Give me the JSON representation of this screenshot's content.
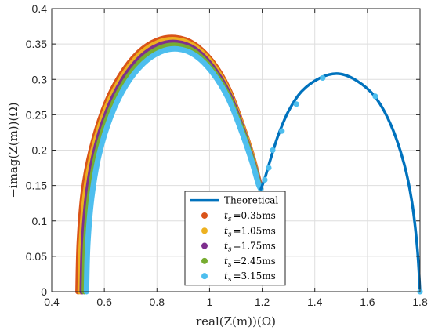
{
  "chart_data": {
    "type": "line",
    "title": "",
    "xlabel": "real(Z(m))(Ω)",
    "ylabel": "−imag(Z(m))(Ω)",
    "xlim": [
      0.4,
      1.8
    ],
    "ylim": [
      0,
      0.4
    ],
    "xticks": [
      "0.4",
      "0.6",
      "0.8",
      "1",
      "1.2",
      "1.4",
      "1.6",
      "1.8"
    ],
    "yticks": [
      "0",
      "0.05",
      "0.1",
      "0.15",
      "0.2",
      "0.25",
      "0.3",
      "0.35",
      "0.4"
    ],
    "grid": true,
    "legend_position": "bottom-center",
    "theoretical": {
      "name": "Theoretical",
      "color": "#0072BD",
      "points": [
        [
          1.195,
          0.145
        ],
        [
          1.21,
          0.16
        ],
        [
          1.23,
          0.185
        ],
        [
          1.26,
          0.22
        ],
        [
          1.3,
          0.255
        ],
        [
          1.35,
          0.283
        ],
        [
          1.42,
          0.302
        ],
        [
          1.49,
          0.308
        ],
        [
          1.56,
          0.298
        ],
        [
          1.63,
          0.275
        ],
        [
          1.69,
          0.235
        ],
        [
          1.74,
          0.18
        ],
        [
          1.77,
          0.125
        ],
        [
          1.79,
          0.06
        ],
        [
          1.8,
          0.0
        ]
      ]
    },
    "theoretical_markers": [
      [
        1.21,
        0.158
      ],
      [
        1.225,
        0.175
      ],
      [
        1.24,
        0.2
      ],
      [
        1.275,
        0.227
      ],
      [
        1.33,
        0.265
      ],
      [
        1.43,
        0.302
      ],
      [
        1.63,
        0.276
      ],
      [
        1.8,
        0.0
      ]
    ],
    "series": [
      {
        "name": "=0.35ms",
        "prefix": "t",
        "sub": "s",
        "color": "#D95319",
        "points": [
          [
            0.5,
            0.0
          ],
          [
            0.505,
            0.07
          ],
          [
            0.52,
            0.14
          ],
          [
            0.55,
            0.2
          ],
          [
            0.6,
            0.26
          ],
          [
            0.66,
            0.305
          ],
          [
            0.73,
            0.338
          ],
          [
            0.8,
            0.355
          ],
          [
            0.87,
            0.359
          ],
          [
            0.94,
            0.35
          ],
          [
            1.01,
            0.325
          ],
          [
            1.07,
            0.288
          ],
          [
            1.12,
            0.24
          ],
          [
            1.16,
            0.195
          ],
          [
            1.185,
            0.16
          ],
          [
            1.195,
            0.145
          ]
        ]
      },
      {
        "name": "=1.05ms",
        "prefix": "t",
        "sub": "s",
        "color": "#EDB120",
        "points": [
          [
            0.508,
            0.0
          ],
          [
            0.513,
            0.07
          ],
          [
            0.528,
            0.139
          ],
          [
            0.557,
            0.199
          ],
          [
            0.606,
            0.258
          ],
          [
            0.665,
            0.302
          ],
          [
            0.734,
            0.335
          ],
          [
            0.804,
            0.352
          ],
          [
            0.872,
            0.356
          ],
          [
            0.941,
            0.347
          ],
          [
            1.01,
            0.322
          ],
          [
            1.07,
            0.285
          ],
          [
            1.12,
            0.238
          ],
          [
            1.16,
            0.193
          ],
          [
            1.185,
            0.158
          ],
          [
            1.195,
            0.145
          ]
        ]
      },
      {
        "name": "=1.75ms",
        "prefix": "t",
        "sub": "s",
        "color": "#7E2F8E",
        "points": [
          [
            0.516,
            0.0
          ],
          [
            0.521,
            0.069
          ],
          [
            0.536,
            0.137
          ],
          [
            0.564,
            0.197
          ],
          [
            0.612,
            0.255
          ],
          [
            0.67,
            0.299
          ],
          [
            0.738,
            0.331
          ],
          [
            0.807,
            0.348
          ],
          [
            0.874,
            0.352
          ],
          [
            0.942,
            0.343
          ],
          [
            1.01,
            0.318
          ],
          [
            1.07,
            0.282
          ],
          [
            1.12,
            0.235
          ],
          [
            1.16,
            0.19
          ],
          [
            1.185,
            0.157
          ],
          [
            1.195,
            0.145
          ]
        ]
      },
      {
        "name": "=2.45ms",
        "prefix": "t",
        "sub": "s",
        "color": "#77AC30",
        "points": [
          [
            0.524,
            0.0
          ],
          [
            0.529,
            0.068
          ],
          [
            0.544,
            0.135
          ],
          [
            0.571,
            0.195
          ],
          [
            0.618,
            0.252
          ],
          [
            0.675,
            0.295
          ],
          [
            0.742,
            0.327
          ],
          [
            0.81,
            0.344
          ],
          [
            0.876,
            0.348
          ],
          [
            0.943,
            0.339
          ],
          [
            1.01,
            0.314
          ],
          [
            1.07,
            0.278
          ],
          [
            1.12,
            0.232
          ],
          [
            1.16,
            0.188
          ],
          [
            1.185,
            0.155
          ],
          [
            1.195,
            0.145
          ]
        ]
      },
      {
        "name": "=3.15ms",
        "prefix": "t",
        "sub": "s",
        "color": "#4DBEEE",
        "points": [
          [
            0.532,
            0.0
          ],
          [
            0.537,
            0.067
          ],
          [
            0.552,
            0.133
          ],
          [
            0.579,
            0.192
          ],
          [
            0.625,
            0.248
          ],
          [
            0.681,
            0.291
          ],
          [
            0.747,
            0.322
          ],
          [
            0.814,
            0.339
          ],
          [
            0.879,
            0.343
          ],
          [
            0.945,
            0.334
          ],
          [
            1.01,
            0.31
          ],
          [
            1.07,
            0.274
          ],
          [
            1.12,
            0.228
          ],
          [
            1.16,
            0.185
          ],
          [
            1.185,
            0.153
          ],
          [
            1.195,
            0.145
          ]
        ]
      }
    ]
  }
}
